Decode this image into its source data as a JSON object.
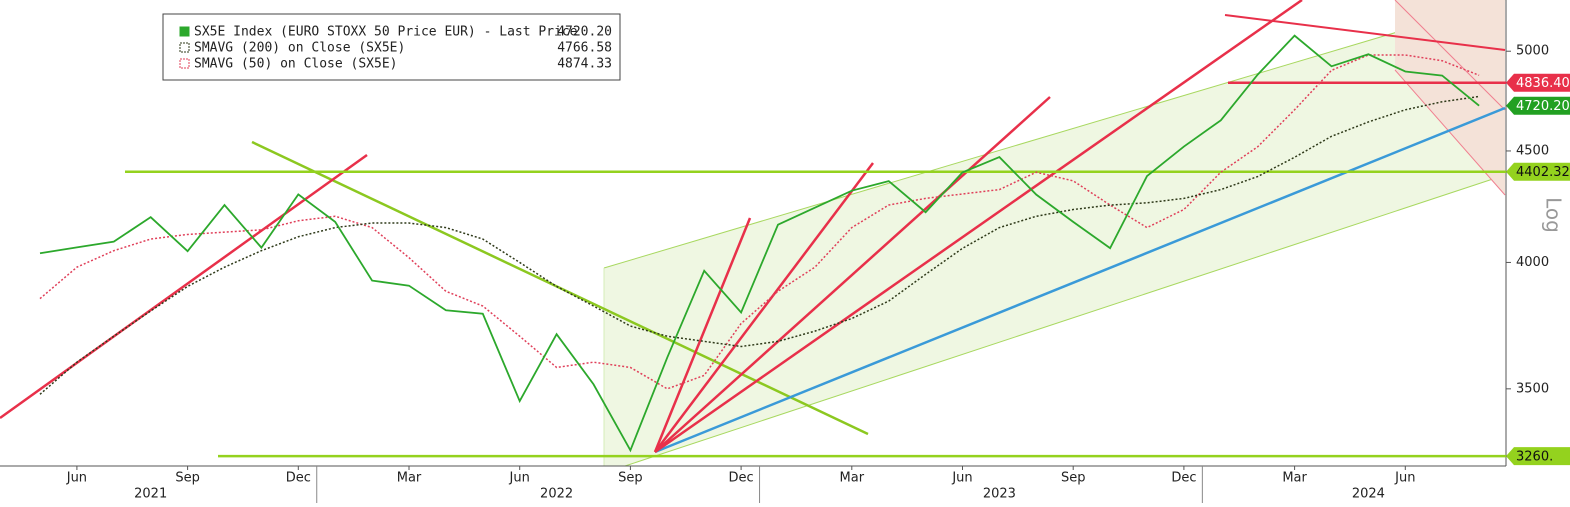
{
  "chart_data": {
    "type": "line",
    "log_scale": true,
    "axis_title": "Log",
    "categories": [
      "2021-05",
      "2021-06",
      "2021-07",
      "2021-08",
      "2021-09",
      "2021-10",
      "2021-11",
      "2021-12",
      "2022-01",
      "2022-02",
      "2022-03",
      "2022-04",
      "2022-05",
      "2022-06",
      "2022-07",
      "2022-08",
      "2022-09",
      "2022-10",
      "2022-11",
      "2022-12",
      "2023-01",
      "2023-02",
      "2023-03",
      "2023-04",
      "2023-05",
      "2023-06",
      "2023-07",
      "2023-08",
      "2023-09",
      "2023-10",
      "2023-11",
      "2023-12",
      "2024-01",
      "2024-02",
      "2024-03",
      "2024-04",
      "2024-05",
      "2024-06",
      "2024-07",
      "2024-08"
    ],
    "series": [
      {
        "name": "SX5E Index (EURO STOXX 50 Price EUR) - Last Price",
        "last_label": "4720.20",
        "color": "#2ca82c",
        "values": [
          4039,
          4064,
          4089,
          4196,
          4048,
          4250,
          4063,
          4298,
          4175,
          3924,
          3903,
          3803,
          3789,
          3455,
          3708,
          3517,
          3280,
          3618,
          3965,
          3794,
          4163,
          4238,
          4315,
          4359,
          4218,
          4399,
          4471,
          4297,
          4175,
          4061,
          4382,
          4521,
          4648,
          4878,
          5083,
          4921,
          4984,
          4894,
          4873,
          4720.2
        ]
      },
      {
        "name": "SMAVG (200)  on Close (SX5E)",
        "last_label": "4766.58",
        "color": "#2f3a1a",
        "values": [
          3480,
          3600,
          3700,
          3800,
          3900,
          3980,
          4050,
          4110,
          4150,
          4170,
          4170,
          4150,
          4100,
          4000,
          3900,
          3820,
          3740,
          3700,
          3680,
          3660,
          3680,
          3720,
          3770,
          3840,
          3950,
          4060,
          4150,
          4200,
          4230,
          4250,
          4260,
          4280,
          4320,
          4380,
          4470,
          4570,
          4640,
          4700,
          4740,
          4766.58
        ]
      },
      {
        "name": "SMAVG (50)  on Close (SX5E)",
        "last_label": "4874.33",
        "color": "#e0405a",
        "values": [
          3850,
          3980,
          4050,
          4100,
          4120,
          4130,
          4140,
          4180,
          4200,
          4150,
          4020,
          3880,
          3820,
          3700,
          3580,
          3600,
          3580,
          3500,
          3550,
          3750,
          3880,
          3980,
          4150,
          4250,
          4280,
          4300,
          4320,
          4400,
          4360,
          4250,
          4150,
          4230,
          4400,
          4520,
          4700,
          4900,
          4980,
          4980,
          4950,
          4874.33
        ]
      }
    ],
    "ylim": [
      3226,
      5278
    ],
    "yticks": [
      3500,
      4000,
      4500,
      5000
    ],
    "xticks": [
      {
        "value": "2021-06",
        "label": "Jun"
      },
      {
        "value": "2021-09",
        "label": "Sep"
      },
      {
        "value": "2021-12",
        "label": "Dec"
      },
      {
        "value": "2022-03",
        "label": "Mar"
      },
      {
        "value": "2022-06",
        "label": "Jun"
      },
      {
        "value": "2022-09",
        "label": "Sep"
      },
      {
        "value": "2022-12",
        "label": "Dec"
      },
      {
        "value": "2023-03",
        "label": "Mar"
      },
      {
        "value": "2023-06",
        "label": "Jun"
      },
      {
        "value": "2023-09",
        "label": "Sep"
      },
      {
        "value": "2023-12",
        "label": "Dec"
      },
      {
        "value": "2024-03",
        "label": "Mar"
      },
      {
        "value": "2024-06",
        "label": "Jun"
      }
    ],
    "year_labels": [
      {
        "value": "2021-08",
        "label": "2021"
      },
      {
        "value": "2022-07",
        "label": "2022"
      },
      {
        "value": "2023-07",
        "label": "2023"
      },
      {
        "value": "2024-05",
        "label": "2024"
      }
    ],
    "levels": [
      {
        "value": 4836.4,
        "label": "4836.40",
        "color": "#e8304a"
      },
      {
        "value": 4720.2,
        "label": "4720.20",
        "color": "#22a022"
      },
      {
        "value": 4402.32,
        "label": "4402.32",
        "color": "#94d21e"
      },
      {
        "value": 3260,
        "label": "3260.",
        "color": "#94d21e"
      }
    ]
  }
}
